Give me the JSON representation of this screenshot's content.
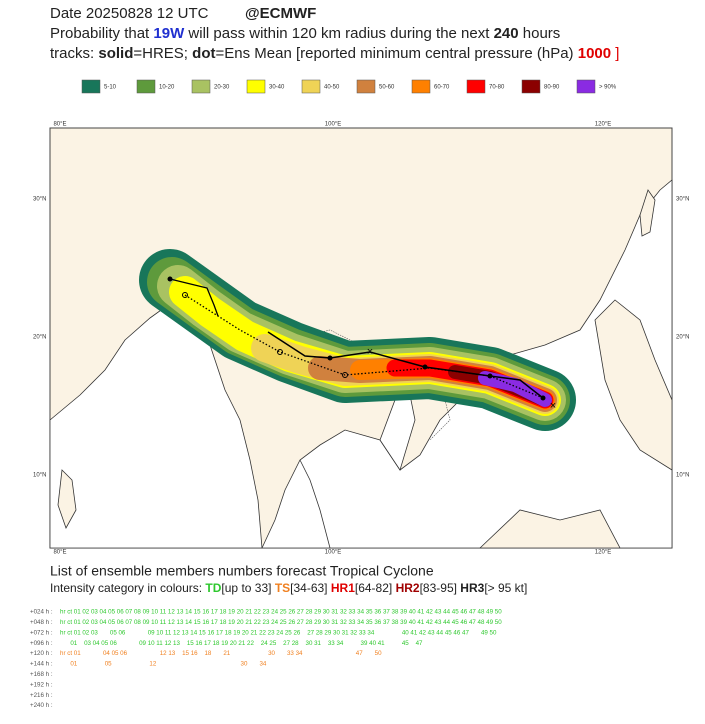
{
  "header": {
    "line1": [
      "Date 20250828 12 UTC",
      "@ECMWF"
    ],
    "line2": [
      "Probability that",
      "19W",
      "will pass within 120 km radius during the next",
      "240",
      "hours"
    ],
    "line3": [
      "tracks:",
      "solid",
      "=HRES;",
      "dot",
      "=Ens Mean [reported minimum central pressure (hPa)",
      "1000",
      "]"
    ]
  },
  "legend": [
    {
      "label": "5-10",
      "color": "#18765a"
    },
    {
      "label": "10-20",
      "color": "#5e9a3c"
    },
    {
      "label": "20-30",
      "color": "#a9c262"
    },
    {
      "label": "30-40",
      "color": "#ffff00"
    },
    {
      "label": "40-50",
      "color": "#efd356"
    },
    {
      "label": "50-60",
      "color": "#d0813e"
    },
    {
      "label": "60-70",
      "color": "#ff8000"
    },
    {
      "label": "70-80",
      "color": "#ff0000"
    },
    {
      "label": "80-90",
      "color": "#8b0000"
    },
    {
      "label": "> 90%",
      "color": "#8a2be2"
    }
  ],
  "map": {
    "lon_labels": [
      "80°E",
      "100°E",
      "120°E"
    ],
    "lat_labels": [
      "30°N",
      "20°N",
      "10°N"
    ]
  },
  "ensemble": {
    "title": "List of ensemble members numbers forecast Tropical Cyclone",
    "intensity": [
      "Intensity category in colours:",
      "TD",
      "[up to 33]",
      "TS",
      "[34-63]",
      "HR1",
      "[64-82]",
      "HR2",
      "[83-95]",
      "HR3",
      "[> 95 kt]"
    ],
    "rows": [
      {
        "label": "+024 h :",
        "text": "hr ct 01 02 03 04 05 06 07 08 09 10 11 12 13 14 15 16 17 18 19 20 21 22 23 24 25 26 27 28 29 30 31 32 33 34 35 36 37 38 39 40 41 42 43 44 45 46 47 48 49 50"
      },
      {
        "label": "+048 h :",
        "text": "hr ct 01 02 03 04 05 06 07 08 09 10 11 12 13 14 15 16 17 18 19 20 21 22 23 24 25 26 27 28 29 30 31 32 33 34 35 36 37 38 39 40 41 42 43 44 45 46 47 48 49 50"
      },
      {
        "label": "+072 h :",
        "text": "hr ct 01 02 03       05 06             09 10 11 12 13 14 15 16 17 18 19 20 21 22 23 24 25 26    27 28 29 30 31 32 33 34                40 41 42 43 44 45 46 47       49 50"
      },
      {
        "label": "+096 h :",
        "text": "      01    03 04 05 06             09 10 11 12 13    15 16 17 18 19 20 21 22    24 25    27 28    30 31    33 34          39 40 41          45    47"
      },
      {
        "label": "+120 h :",
        "text": "hr ct 01             04 05 06                   12 13    15 16    18       21                      30       33 34                               47       50"
      },
      {
        "label": "+144 h :",
        "text": "      01                05                      12                                                 30       34"
      },
      {
        "label": "+168 h :",
        "text": ""
      },
      {
        "label": "+192 h :",
        "text": ""
      },
      {
        "label": "+216 h :",
        "text": ""
      },
      {
        "label": "+240 h :",
        "text": ""
      }
    ]
  }
}
